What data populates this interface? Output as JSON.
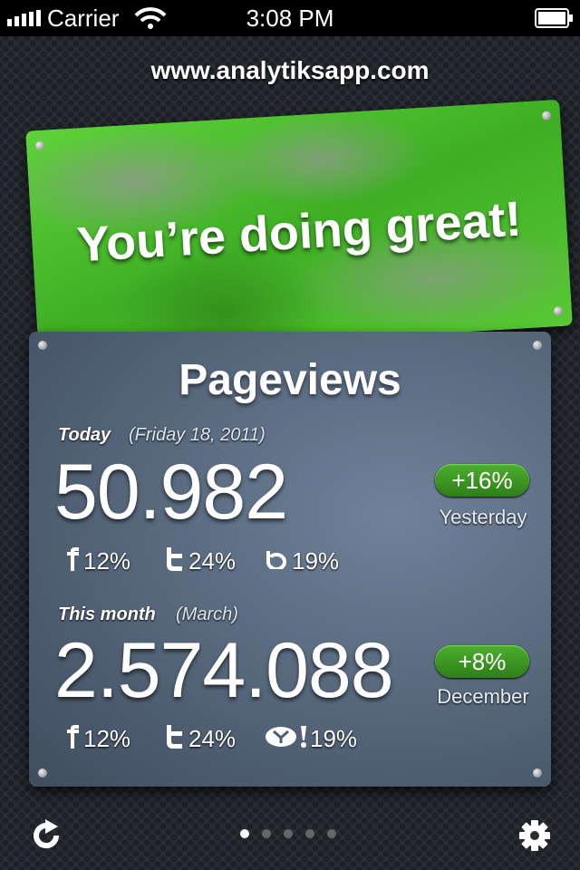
{
  "status_bar": {
    "carrier": "Carrier",
    "time": "3:08 PM"
  },
  "header": {
    "url": "www.analytiksapp.com"
  },
  "banner": {
    "message": "You’re doing great!"
  },
  "panel": {
    "title": "Pageviews",
    "sections": [
      {
        "label": "Today",
        "period": "(Friday 18, 2011)",
        "value": "50.982",
        "change": "+16%",
        "comparison": "Yesterday",
        "shares": [
          "12%",
          "24%",
          "19%"
        ]
      },
      {
        "label": "This month",
        "period": "(March)",
        "value": "2.574.088",
        "change": "+8%",
        "comparison": "December",
        "shares": [
          "12%",
          "24%",
          "19%"
        ]
      }
    ]
  }
}
